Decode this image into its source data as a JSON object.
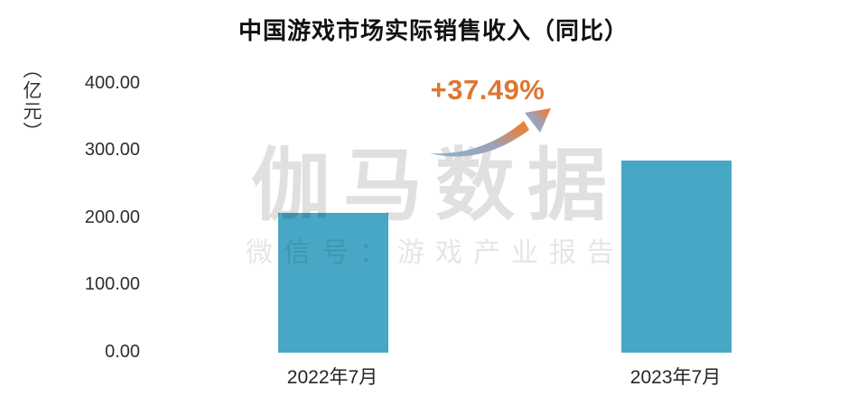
{
  "title": "中国游戏市场实际销售收入（同比）",
  "annotation": {
    "text": "+37.49%",
    "color": "#dd7632"
  },
  "y_axis": {
    "unit": "（亿元）",
    "ticks": [
      "400.00",
      "300.00",
      "200.00",
      "100.00",
      "0.00"
    ]
  },
  "watermark": {
    "brand": "伽马数据",
    "tagline": "微信号：游戏产业报告"
  },
  "icons": {
    "growth_arrow": "curved-up-right-arrow"
  },
  "colors": {
    "bar": "#48a7c4",
    "annotation_orange": "#dd7632",
    "arrow_gradient_start": "#86b6c9",
    "arrow_gradient_end": "#e8813f",
    "title_text": "#111111",
    "axis_text": "#2f2f2f"
  },
  "chart_data": {
    "type": "bar",
    "title": "中国游戏市场实际销售收入（同比）",
    "xlabel": "",
    "ylabel": "亿元",
    "ylim": [
      0,
      400
    ],
    "ytick_values": [
      400,
      300,
      200,
      100,
      0
    ],
    "grid": false,
    "legend_position": "none",
    "categories": [
      "2022年7月",
      "2023年7月"
    ],
    "values": [
      208,
      286
    ],
    "series_name": "实际销售收入",
    "annotations": [
      {
        "text": "+37.49%",
        "meaning": "year-over-year growth"
      }
    ]
  }
}
